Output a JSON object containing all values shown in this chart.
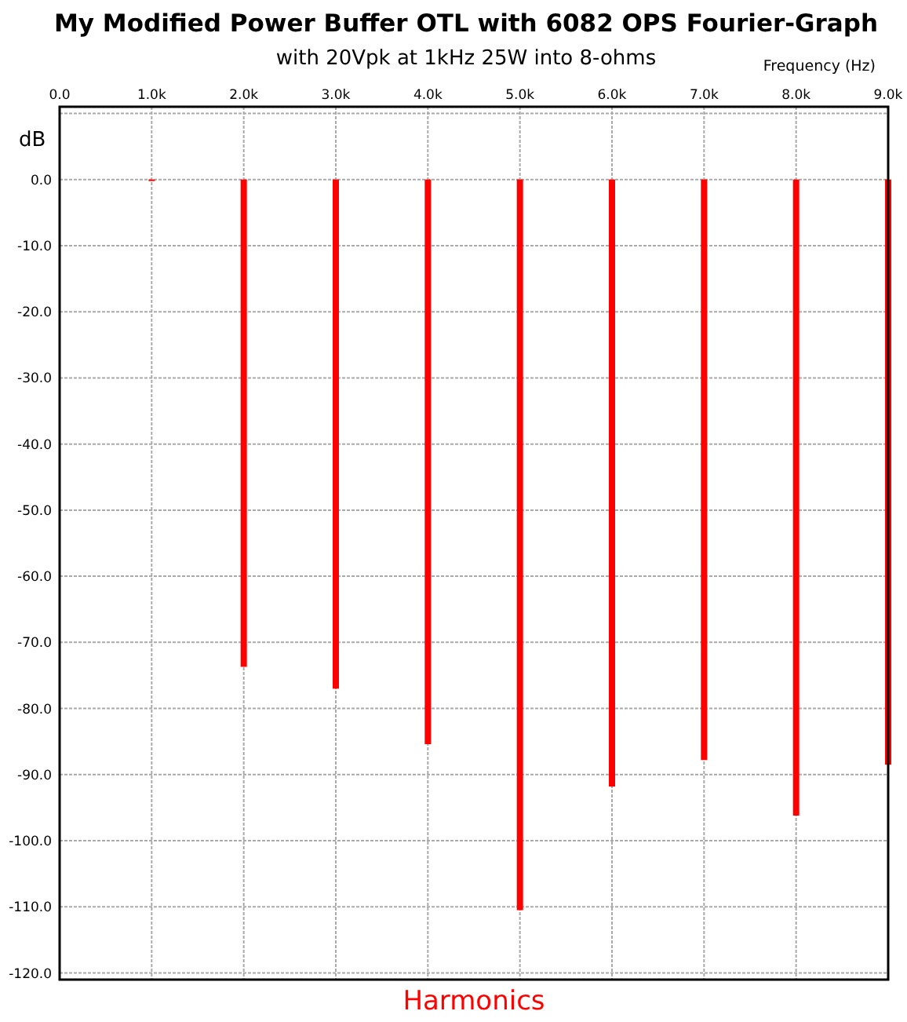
{
  "chart_data": {
    "type": "bar",
    "title": "My Modified Power Buffer OTL with 6082 OPS Fourier-Graph",
    "subtitle": "with 20Vpk at 1kHz 25W into 8-ohms",
    "xlabel": "Frequency   (Hz)",
    "ylabel": "dB",
    "annotations": [
      "Harmonics"
    ],
    "x": [
      1000,
      2000,
      3000,
      4000,
      5000,
      6000,
      7000,
      8000,
      9000
    ],
    "values": [
      0,
      -73.7,
      -77.0,
      -85.4,
      -110.5,
      -91.8,
      -87.8,
      -96.2,
      -88.5
    ],
    "color": "#ff0000",
    "xlim": [
      0,
      9000
    ],
    "xticks": [
      {
        "value": 0,
        "label": "0.0"
      },
      {
        "value": 1000,
        "label": "1.0k"
      },
      {
        "value": 2000,
        "label": "2.0k"
      },
      {
        "value": 3000,
        "label": "3.0k"
      },
      {
        "value": 4000,
        "label": "4.0k"
      },
      {
        "value": 5000,
        "label": "5.0k"
      },
      {
        "value": 6000,
        "label": "6.0k"
      },
      {
        "value": 7000,
        "label": "7.0k"
      },
      {
        "value": 8000,
        "label": "8.0k"
      },
      {
        "value": 9000,
        "label": "9.0k"
      }
    ],
    "ylim": [
      -121,
      11
    ],
    "yticks": [
      {
        "value": 10,
        "label": null
      },
      {
        "value": 0,
        "label": "0.0"
      },
      {
        "value": -10,
        "label": "-10.0"
      },
      {
        "value": -20,
        "label": "-20.0"
      },
      {
        "value": -30,
        "label": "-30.0"
      },
      {
        "value": -40,
        "label": "-40.0"
      },
      {
        "value": -50,
        "label": "-50.0"
      },
      {
        "value": -60,
        "label": "-60.0"
      },
      {
        "value": -70,
        "label": "-70.0"
      },
      {
        "value": -80,
        "label": "-80.0"
      },
      {
        "value": -90,
        "label": "-90.0"
      },
      {
        "value": -100,
        "label": "-100.0"
      },
      {
        "value": -110,
        "label": "-110.0"
      },
      {
        "value": -120,
        "label": "-120.0"
      }
    ],
    "grid": true
  }
}
